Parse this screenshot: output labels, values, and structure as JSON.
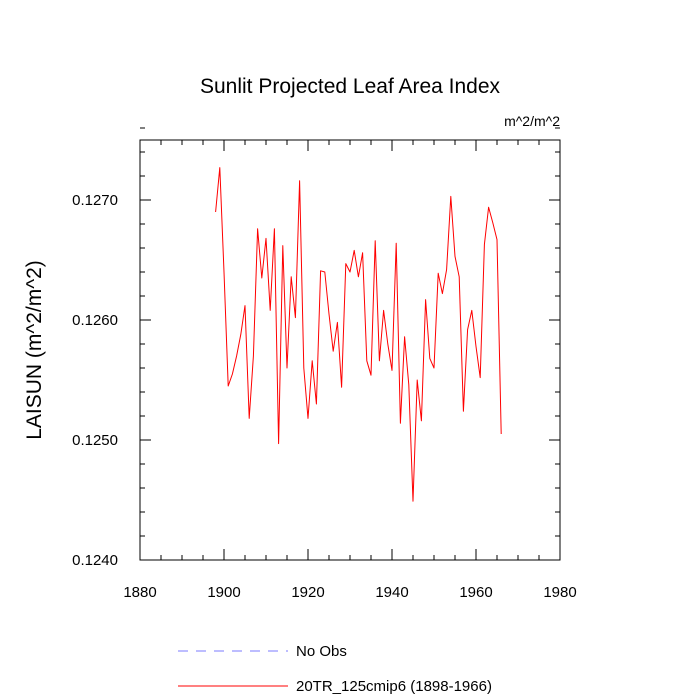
{
  "chart_data": {
    "type": "line",
    "title": "Sunlit Projected Leaf Area Index",
    "units_label": "m^2/m^2",
    "xlabel": "",
    "ylabel": "LAISUN  (m^2/m^2)",
    "xlim": [
      1880,
      1980
    ],
    "ylim": [
      0.124,
      0.1275
    ],
    "x_ticks": [
      1880,
      1900,
      1920,
      1940,
      1960,
      1980
    ],
    "x_tick_labels": [
      "1880",
      "1900",
      "1920",
      "1940",
      "1960",
      "1980"
    ],
    "y_ticks": [
      0.124,
      0.125,
      0.126,
      0.127
    ],
    "y_tick_labels": [
      "0.1240",
      "0.1250",
      "0.1260",
      "0.1270"
    ],
    "legend": [
      {
        "label": "No Obs",
        "color": "#7b7bff",
        "style": "dashed"
      },
      {
        "label": "20TR_125cmip6 (1898-1966)",
        "color": "#ff0000",
        "style": "solid"
      }
    ],
    "series": [
      {
        "name": "20TR_125cmip6 (1898-1966)",
        "color": "#ff0000",
        "x": [
          1898,
          1899,
          1900,
          1901,
          1902,
          1903,
          1904,
          1905,
          1906,
          1907,
          1908,
          1909,
          1910,
          1911,
          1912,
          1913,
          1914,
          1915,
          1916,
          1917,
          1918,
          1919,
          1920,
          1921,
          1922,
          1923,
          1924,
          1925,
          1926,
          1927,
          1928,
          1929,
          1930,
          1931,
          1932,
          1933,
          1934,
          1935,
          1936,
          1937,
          1938,
          1939,
          1940,
          1941,
          1942,
          1943,
          1944,
          1945,
          1946,
          1947,
          1948,
          1949,
          1950,
          1951,
          1952,
          1953,
          1954,
          1955,
          1956,
          1957,
          1958,
          1959,
          1960,
          1961,
          1962,
          1963,
          1964,
          1965,
          1966
        ],
        "values": [
          0.1269,
          0.12727,
          0.1264,
          0.12545,
          0.12555,
          0.1257,
          0.12588,
          0.12612,
          0.12518,
          0.1257,
          0.12676,
          0.12635,
          0.12668,
          0.12608,
          0.12676,
          0.12497,
          0.12662,
          0.1256,
          0.12636,
          0.12602,
          0.12716,
          0.1256,
          0.12518,
          0.12566,
          0.1253,
          0.12641,
          0.1264,
          0.12605,
          0.12574,
          0.12598,
          0.12544,
          0.12647,
          0.1264,
          0.12658,
          0.12636,
          0.12656,
          0.12566,
          0.12554,
          0.12666,
          0.12566,
          0.12608,
          0.1258,
          0.12558,
          0.12664,
          0.12514,
          0.12586,
          0.12546,
          0.12449,
          0.1255,
          0.12516,
          0.12617,
          0.12568,
          0.1256,
          0.12639,
          0.12622,
          0.12642,
          0.12703,
          0.12653,
          0.12636,
          0.12524,
          0.12592,
          0.12608,
          0.12578,
          0.12552,
          0.12663,
          0.12694,
          0.12681,
          0.12667,
          0.12505
        ]
      }
    ]
  }
}
